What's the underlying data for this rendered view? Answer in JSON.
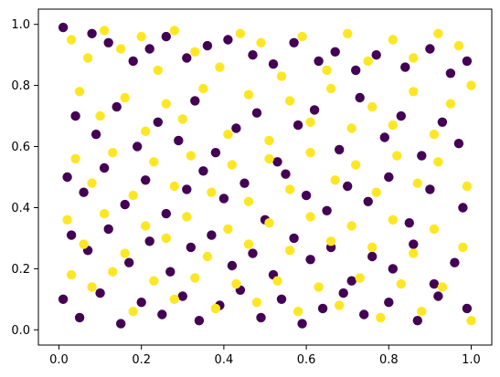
{
  "chart_data": {
    "type": "scatter",
    "title": "",
    "xlabel": "",
    "ylabel": "",
    "xlim": [
      -0.05,
      1.05
    ],
    "ylim": [
      -0.05,
      1.05
    ],
    "x_ticks": [
      0.0,
      0.2,
      0.4,
      0.6,
      0.8,
      1.0
    ],
    "y_ticks": [
      0.0,
      0.2,
      0.4,
      0.6,
      0.8,
      1.0
    ],
    "x_tick_labels": [
      "0.0",
      "0.2",
      "0.4",
      "0.6",
      "0.8",
      "1.0"
    ],
    "y_tick_labels": [
      "0.0",
      "0.2",
      "0.4",
      "0.6",
      "0.8",
      "1.0"
    ],
    "grid": false,
    "legend": "none",
    "class_colors": {
      "class_0": "#440154",
      "class_1": "#fde725"
    },
    "series": [
      {
        "values": [
          [
            0.01,
            0.99
          ],
          [
            0.08,
            0.97
          ],
          [
            0.12,
            0.94
          ],
          [
            0.18,
            0.88
          ],
          [
            0.22,
            0.92
          ],
          [
            0.26,
            0.96
          ],
          [
            0.31,
            0.89
          ],
          [
            0.36,
            0.93
          ],
          [
            0.41,
            0.95
          ],
          [
            0.47,
            0.9
          ],
          [
            0.52,
            0.87
          ],
          [
            0.57,
            0.94
          ],
          [
            0.63,
            0.88
          ],
          [
            0.67,
            0.91
          ],
          [
            0.72,
            0.85
          ],
          [
            0.77,
            0.9
          ],
          [
            0.84,
            0.86
          ],
          [
            0.9,
            0.92
          ],
          [
            0.95,
            0.84
          ],
          [
            0.99,
            0.88
          ],
          [
            0.04,
            0.7
          ],
          [
            0.09,
            0.64
          ],
          [
            0.14,
            0.73
          ],
          [
            0.19,
            0.6
          ],
          [
            0.24,
            0.68
          ],
          [
            0.29,
            0.62
          ],
          [
            0.33,
            0.75
          ],
          [
            0.38,
            0.58
          ],
          [
            0.43,
            0.66
          ],
          [
            0.48,
            0.71
          ],
          [
            0.53,
            0.55
          ],
          [
            0.58,
            0.67
          ],
          [
            0.62,
            0.72
          ],
          [
            0.68,
            0.59
          ],
          [
            0.73,
            0.76
          ],
          [
            0.79,
            0.63
          ],
          [
            0.83,
            0.7
          ],
          [
            0.88,
            0.57
          ],
          [
            0.93,
            0.68
          ],
          [
            0.97,
            0.61
          ],
          [
            0.02,
            0.5
          ],
          [
            0.06,
            0.45
          ],
          [
            0.11,
            0.53
          ],
          [
            0.16,
            0.41
          ],
          [
            0.21,
            0.49
          ],
          [
            0.26,
            0.38
          ],
          [
            0.31,
            0.46
          ],
          [
            0.35,
            0.52
          ],
          [
            0.4,
            0.43
          ],
          [
            0.45,
            0.48
          ],
          [
            0.5,
            0.36
          ],
          [
            0.55,
            0.51
          ],
          [
            0.6,
            0.44
          ],
          [
            0.65,
            0.39
          ],
          [
            0.7,
            0.47
          ],
          [
            0.75,
            0.42
          ],
          [
            0.8,
            0.5
          ],
          [
            0.85,
            0.35
          ],
          [
            0.9,
            0.46
          ],
          [
            0.98,
            0.4
          ],
          [
            0.03,
            0.31
          ],
          [
            0.07,
            0.26
          ],
          [
            0.12,
            0.33
          ],
          [
            0.17,
            0.22
          ],
          [
            0.22,
            0.29
          ],
          [
            0.27,
            0.19
          ],
          [
            0.32,
            0.27
          ],
          [
            0.37,
            0.31
          ],
          [
            0.42,
            0.21
          ],
          [
            0.47,
            0.25
          ],
          [
            0.52,
            0.18
          ],
          [
            0.57,
            0.3
          ],
          [
            0.61,
            0.23
          ],
          [
            0.66,
            0.27
          ],
          [
            0.71,
            0.16
          ],
          [
            0.76,
            0.24
          ],
          [
            0.81,
            0.2
          ],
          [
            0.86,
            0.28
          ],
          [
            0.91,
            0.15
          ],
          [
            0.96,
            0.22
          ],
          [
            0.01,
            0.1
          ],
          [
            0.05,
            0.04
          ],
          [
            0.1,
            0.12
          ],
          [
            0.15,
            0.02
          ],
          [
            0.2,
            0.09
          ],
          [
            0.25,
            0.05
          ],
          [
            0.3,
            0.11
          ],
          [
            0.34,
            0.03
          ],
          [
            0.39,
            0.08
          ],
          [
            0.44,
            0.13
          ],
          [
            0.49,
            0.04
          ],
          [
            0.54,
            0.1
          ],
          [
            0.59,
            0.02
          ],
          [
            0.64,
            0.07
          ],
          [
            0.69,
            0.12
          ],
          [
            0.74,
            0.05
          ],
          [
            0.8,
            0.09
          ],
          [
            0.87,
            0.03
          ],
          [
            0.92,
            0.11
          ],
          [
            0.99,
            0.07
          ]
        ]
      },
      {
        "values": [
          [
            0.03,
            0.95
          ],
          [
            0.07,
            0.89
          ],
          [
            0.11,
            0.98
          ],
          [
            0.15,
            0.92
          ],
          [
            0.2,
            0.96
          ],
          [
            0.24,
            0.85
          ],
          [
            0.28,
            0.98
          ],
          [
            0.33,
            0.91
          ],
          [
            0.39,
            0.86
          ],
          [
            0.44,
            0.97
          ],
          [
            0.49,
            0.94
          ],
          [
            0.54,
            0.83
          ],
          [
            0.59,
            0.96
          ],
          [
            0.65,
            0.85
          ],
          [
            0.7,
            0.97
          ],
          [
            0.75,
            0.88
          ],
          [
            0.81,
            0.95
          ],
          [
            0.86,
            0.89
          ],
          [
            0.92,
            0.97
          ],
          [
            0.97,
            0.93
          ],
          [
            0.05,
            0.78
          ],
          [
            0.1,
            0.7
          ],
          [
            0.16,
            0.76
          ],
          [
            0.21,
            0.65
          ],
          [
            0.26,
            0.74
          ],
          [
            0.3,
            0.69
          ],
          [
            0.35,
            0.79
          ],
          [
            0.41,
            0.64
          ],
          [
            0.46,
            0.77
          ],
          [
            0.51,
            0.62
          ],
          [
            0.56,
            0.75
          ],
          [
            0.61,
            0.68
          ],
          [
            0.66,
            0.79
          ],
          [
            0.71,
            0.66
          ],
          [
            0.76,
            0.73
          ],
          [
            0.81,
            0.67
          ],
          [
            0.86,
            0.78
          ],
          [
            0.91,
            0.64
          ],
          [
            0.95,
            0.74
          ],
          [
            1.0,
            0.8
          ],
          [
            0.04,
            0.56
          ],
          [
            0.08,
            0.48
          ],
          [
            0.13,
            0.58
          ],
          [
            0.18,
            0.44
          ],
          [
            0.23,
            0.55
          ],
          [
            0.28,
            0.47
          ],
          [
            0.32,
            0.57
          ],
          [
            0.37,
            0.45
          ],
          [
            0.42,
            0.54
          ],
          [
            0.46,
            0.42
          ],
          [
            0.51,
            0.56
          ],
          [
            0.56,
            0.46
          ],
          [
            0.61,
            0.58
          ],
          [
            0.67,
            0.49
          ],
          [
            0.72,
            0.54
          ],
          [
            0.77,
            0.45
          ],
          [
            0.82,
            0.57
          ],
          [
            0.87,
            0.48
          ],
          [
            0.92,
            0.55
          ],
          [
            0.99,
            0.47
          ],
          [
            0.02,
            0.36
          ],
          [
            0.06,
            0.28
          ],
          [
            0.11,
            0.38
          ],
          [
            0.16,
            0.25
          ],
          [
            0.21,
            0.34
          ],
          [
            0.26,
            0.3
          ],
          [
            0.31,
            0.37
          ],
          [
            0.36,
            0.24
          ],
          [
            0.41,
            0.33
          ],
          [
            0.46,
            0.28
          ],
          [
            0.51,
            0.35
          ],
          [
            0.56,
            0.26
          ],
          [
            0.61,
            0.37
          ],
          [
            0.66,
            0.29
          ],
          [
            0.71,
            0.34
          ],
          [
            0.76,
            0.27
          ],
          [
            0.81,
            0.36
          ],
          [
            0.86,
            0.25
          ],
          [
            0.91,
            0.33
          ],
          [
            0.98,
            0.27
          ],
          [
            0.03,
            0.18
          ],
          [
            0.08,
            0.14
          ],
          [
            0.13,
            0.19
          ],
          [
            0.18,
            0.06
          ],
          [
            0.23,
            0.16
          ],
          [
            0.28,
            0.1
          ],
          [
            0.33,
            0.17
          ],
          [
            0.38,
            0.07
          ],
          [
            0.43,
            0.15
          ],
          [
            0.48,
            0.09
          ],
          [
            0.53,
            0.16
          ],
          [
            0.58,
            0.06
          ],
          [
            0.63,
            0.14
          ],
          [
            0.68,
            0.08
          ],
          [
            0.73,
            0.17
          ],
          [
            0.78,
            0.04
          ],
          [
            0.83,
            0.15
          ],
          [
            0.88,
            0.06
          ],
          [
            0.93,
            0.14
          ],
          [
            1.0,
            0.03
          ]
        ]
      }
    ]
  }
}
